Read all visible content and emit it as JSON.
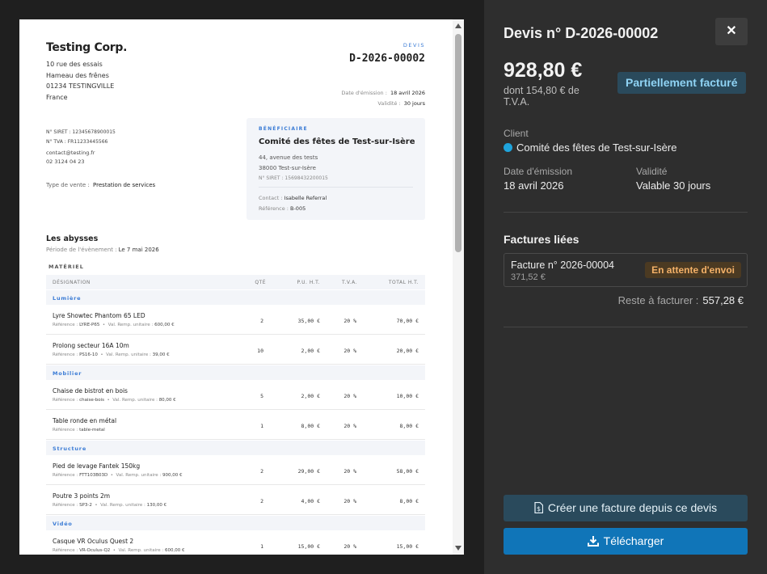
{
  "document": {
    "company": {
      "name": "Testing Corp.",
      "address": [
        "10 rue des essais",
        "Hameau des frênes",
        "01234 TESTINGVILLE",
        "France"
      ],
      "siret": "N° SIRET : 12345678900015",
      "tva": "N° TVA : FR11233445566",
      "email": "contact@testing.fr",
      "phone": "02 3124 04 23"
    },
    "sale_type_label": "Type de vente :",
    "sale_type_value": "Prestation de services",
    "devis_label": "DEVIS",
    "devis_number": "D-2026-00002",
    "emission_label": "Date d'émission :",
    "emission_value": "18 avril 2026",
    "validity_label": "Validité :",
    "validity_value": "30 jours",
    "beneficiary": {
      "label": "BÉNÉFICIAIRE",
      "name": "Comité des fêtes de Test-sur-Isère",
      "address": [
        "44, avenue des tests",
        "38000 Test-sur-Isère"
      ],
      "siret": "N° SIRET : 15698432200015",
      "contact_label": "Contact :",
      "contact_value": "Isabelle Referral",
      "reference_label": "Référence :",
      "reference_value": "B-005"
    },
    "event": {
      "title": "Les abysses",
      "period_label": "Période de l'évènement :",
      "period_value": "Le 7 mai 2026"
    },
    "section_title": "MATÉRIEL",
    "headers": {
      "designation": "DÉSIGNATION",
      "qte": "QTÉ",
      "pu": "P.U. H.T.",
      "tva": "T.V.A.",
      "total": "TOTAL H.T."
    },
    "ref_label": "Référence :",
    "val_label": "Val. Remp. unitaire :",
    "categories": [
      {
        "name": "Lumière",
        "items": [
          {
            "name": "Lyre Showtec Phantom 65 LED",
            "ref": "LYRE-P65",
            "val": "600,00 €",
            "qte": "2",
            "pu": "35,00 €",
            "tva": "20 %",
            "total": "70,00 €"
          },
          {
            "name": "Prolong secteur 16A 10m",
            "ref": "PS16-10",
            "val": "39,00 €",
            "qte": "10",
            "pu": "2,00 €",
            "tva": "20 %",
            "total": "20,00 €"
          }
        ]
      },
      {
        "name": "Mobilier",
        "items": [
          {
            "name": "Chaise de bistrot en bois",
            "ref": "chaise-bois",
            "val": "80,00 €",
            "qte": "5",
            "pu": "2,00 €",
            "tva": "20 %",
            "total": "10,00 €"
          },
          {
            "name": "Table ronde en métal",
            "ref": "table-metal",
            "val": "",
            "qte": "1",
            "pu": "8,00 €",
            "tva": "20 %",
            "total": "8,00 €"
          }
        ]
      },
      {
        "name": "Structure",
        "items": [
          {
            "name": "Pied de levage Fantek 150kg",
            "ref": "FTT103B03D",
            "val": "900,00 €",
            "qte": "2",
            "pu": "29,00 €",
            "tva": "20 %",
            "total": "58,00 €"
          },
          {
            "name": "Poutre 3 points 2m",
            "ref": "SP3-2",
            "val": "130,00 €",
            "qte": "2",
            "pu": "4,00 €",
            "tva": "20 %",
            "total": "8,00 €"
          }
        ]
      },
      {
        "name": "Vidéo",
        "items": [
          {
            "name": "Casque VR Oculus Quest 2",
            "ref": "VR-Oculus-Q2",
            "val": "600,00 €",
            "qte": "1",
            "pu": "15,00 €",
            "tva": "20 %",
            "total": "15,00 €"
          }
        ]
      }
    ]
  },
  "panel": {
    "title": "Devis n° D-2026-00002",
    "close_label": "✕",
    "amount": "928,80 €",
    "amount_sub": "dont 154,80 € de T.V.A.",
    "status": "Partiellement facturé",
    "client_label": "Client",
    "client_value": "Comité des fêtes de Test-sur-Isère",
    "emission_label": "Date d'émission",
    "emission_value": "18 avril 2026",
    "validity_label": "Validité",
    "validity_value": "Valable 30 jours",
    "linked_title": "Factures liées",
    "invoice_title": "Facture n° 2026-00004",
    "invoice_amount": "371,52 €",
    "invoice_status": "En attente d'envoi",
    "reste_label": "Reste à facturer :",
    "reste_value": "557,28 €",
    "btn_create": "Créer une facture depuis ce devis",
    "btn_download": "Télécharger",
    "colors": {
      "accent": "#1075b8",
      "status_bg": "#2a4a5c",
      "status_fg": "#8fd3f4",
      "pending_fg": "#f4b168",
      "client_dot": "#1fa4dc"
    },
    "icons": [
      "close-icon",
      "invoice-icon",
      "download-icon"
    ]
  }
}
